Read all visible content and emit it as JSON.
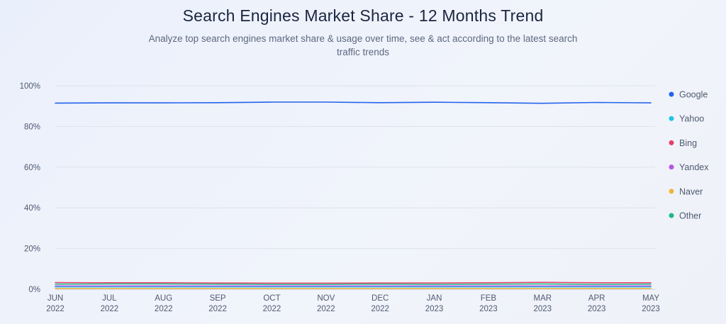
{
  "title": "Search Engines Market Share - 12 Months Trend",
  "subtitle": "Analyze top search engines market share & usage over time, see & act according to the latest search traffic trends",
  "chart_data": {
    "type": "line",
    "x": [
      [
        "JUN",
        "2022"
      ],
      [
        "JUL",
        "2022"
      ],
      [
        "AUG",
        "2022"
      ],
      [
        "SEP",
        "2022"
      ],
      [
        "OCT",
        "2022"
      ],
      [
        "NOV",
        "2022"
      ],
      [
        "DEC",
        "2022"
      ],
      [
        "JAN",
        "2023"
      ],
      [
        "FEB",
        "2023"
      ],
      [
        "MAR",
        "2023"
      ],
      [
        "APR",
        "2023"
      ],
      [
        "MAY",
        "2023"
      ]
    ],
    "ylim": [
      0,
      100
    ],
    "yticks": [
      "0%",
      "20%",
      "40%",
      "60%",
      "80%",
      "100%"
    ],
    "ytick_values": [
      0,
      20,
      40,
      60,
      80,
      100
    ],
    "grid": true,
    "legend_position": "right",
    "series": [
      {
        "name": "Google",
        "color": "#2563eb",
        "values": [
          91.5,
          91.6,
          91.6,
          91.7,
          92.0,
          92.0,
          91.7,
          91.9,
          91.7,
          91.4,
          91.8,
          91.6
        ]
      },
      {
        "name": "Yahoo",
        "color": "#22c3e6",
        "values": [
          1.2,
          1.2,
          1.2,
          1.2,
          1.2,
          1.2,
          1.2,
          1.2,
          1.2,
          1.2,
          1.2,
          1.2
        ]
      },
      {
        "name": "Bing",
        "color": "#e4406a",
        "values": [
          3.3,
          3.2,
          3.2,
          3.1,
          3.0,
          3.0,
          3.1,
          3.1,
          3.2,
          3.4,
          3.2,
          3.2
        ]
      },
      {
        "name": "Yandex",
        "color": "#b455e6",
        "values": [
          1.6,
          1.6,
          1.6,
          1.6,
          1.6,
          1.6,
          1.6,
          1.6,
          1.6,
          1.6,
          1.6,
          1.6
        ]
      },
      {
        "name": "Naver",
        "color": "#f0b43a",
        "values": [
          0.4,
          0.4,
          0.4,
          0.4,
          0.4,
          0.4,
          0.4,
          0.4,
          0.4,
          0.4,
          0.4,
          0.4
        ]
      },
      {
        "name": "Other",
        "color": "#1db886",
        "values": [
          2.5,
          2.6,
          2.6,
          2.5,
          2.4,
          2.4,
          2.5,
          2.4,
          2.5,
          2.6,
          2.4,
          2.5
        ]
      }
    ]
  }
}
